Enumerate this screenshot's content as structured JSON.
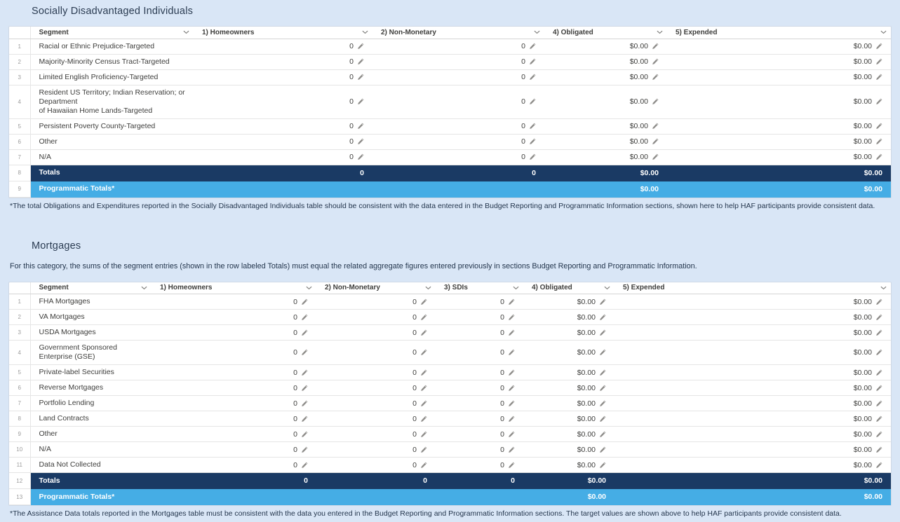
{
  "colors": {
    "page_background": "#d9e6f6",
    "totals_row": "#1a3a64",
    "programmatic_row": "#45ade5",
    "body_text": "#3e3e3c",
    "heading_text": "#2b3c52"
  },
  "icons": {
    "sort": "chevron-down-icon",
    "edit": "pencil-icon"
  },
  "sections": [
    {
      "title": "Socially Disadvantaged Individuals",
      "intro": "",
      "footnote": "*The total Obligations and Expenditures reported in the Socially Disadvantaged Individuals table should be consistent with the data entered in the Budget Reporting and Programmatic Information sections, shown here to help HAF participants provide consistent data.",
      "table": {
        "columns": [
          {
            "label": "Segment"
          },
          {
            "label": "1) Homeowners"
          },
          {
            "label": "2) Non-Monetary"
          },
          {
            "label": "4) Obligated"
          },
          {
            "label": "5) Expended"
          }
        ],
        "rows": [
          {
            "num": "1",
            "segment": "Racial or Ethnic Prejudice-Targeted",
            "values": [
              "0",
              "0",
              "$0.00",
              "$0.00"
            ],
            "editable": true,
            "style": "normal"
          },
          {
            "num": "2",
            "segment": "Majority-Minority Census Tract-Targeted",
            "values": [
              "0",
              "0",
              "$0.00",
              "$0.00"
            ],
            "editable": true,
            "style": "normal"
          },
          {
            "num": "3",
            "segment": "Limited English Proficiency-Targeted",
            "values": [
              "0",
              "0",
              "$0.00",
              "$0.00"
            ],
            "editable": true,
            "style": "normal"
          },
          {
            "num": "4",
            "segment": "Resident US Territory; Indian Reservation; or Department\nof Hawaiian Home Lands-Targeted",
            "values": [
              "0",
              "0",
              "$0.00",
              "$0.00"
            ],
            "editable": true,
            "style": "normal"
          },
          {
            "num": "5",
            "segment": "Persistent Poverty County-Targeted",
            "values": [
              "0",
              "0",
              "$0.00",
              "$0.00"
            ],
            "editable": true,
            "style": "normal"
          },
          {
            "num": "6",
            "segment": "Other",
            "values": [
              "0",
              "0",
              "$0.00",
              "$0.00"
            ],
            "editable": true,
            "style": "normal"
          },
          {
            "num": "7",
            "segment": "N/A",
            "values": [
              "0",
              "0",
              "$0.00",
              "$0.00"
            ],
            "editable": true,
            "style": "normal"
          },
          {
            "num": "8",
            "segment": "Totals",
            "values": [
              "0",
              "0",
              "$0.00",
              "$0.00"
            ],
            "editable": false,
            "style": "totals"
          },
          {
            "num": "9",
            "segment": "Programmatic Totals*",
            "values": [
              "",
              "",
              "$0.00",
              "$0.00"
            ],
            "editable": false,
            "style": "programmatic"
          }
        ]
      }
    },
    {
      "title": "Mortgages",
      "intro": "For this category, the sums of the segment entries (shown in the row labeled Totals) must equal the related aggregate figures entered previously in sections Budget Reporting and Programmatic Information.",
      "footnote": "*The Assistance Data totals reported in the Mortgages table must be consistent with the data you entered in the Budget Reporting and Programmatic Information sections. The target values are shown above to help HAF participants provide consistent data.",
      "table": {
        "columns": [
          {
            "label": "Segment"
          },
          {
            "label": "1) Homeowners"
          },
          {
            "label": "2) Non-Monetary"
          },
          {
            "label": "3) SDIs"
          },
          {
            "label": "4) Obligated"
          },
          {
            "label": "5) Expended"
          }
        ],
        "rows": [
          {
            "num": "1",
            "segment": "FHA Mortgages",
            "values": [
              "0",
              "0",
              "0",
              "$0.00",
              "$0.00"
            ],
            "editable": true,
            "style": "normal"
          },
          {
            "num": "2",
            "segment": "VA Mortgages",
            "values": [
              "0",
              "0",
              "0",
              "$0.00",
              "$0.00"
            ],
            "editable": true,
            "style": "normal"
          },
          {
            "num": "3",
            "segment": "USDA Mortgages",
            "values": [
              "0",
              "0",
              "0",
              "$0.00",
              "$0.00"
            ],
            "editable": true,
            "style": "normal"
          },
          {
            "num": "4",
            "segment": "Government Sponsored Enterprise (GSE)",
            "values": [
              "0",
              "0",
              "0",
              "$0.00",
              "$0.00"
            ],
            "editable": true,
            "style": "normal"
          },
          {
            "num": "5",
            "segment": "Private-label Securities",
            "values": [
              "0",
              "0",
              "0",
              "$0.00",
              "$0.00"
            ],
            "editable": true,
            "style": "normal"
          },
          {
            "num": "6",
            "segment": "Reverse Mortgages",
            "values": [
              "0",
              "0",
              "0",
              "$0.00",
              "$0.00"
            ],
            "editable": true,
            "style": "normal"
          },
          {
            "num": "7",
            "segment": "Portfolio Lending",
            "values": [
              "0",
              "0",
              "0",
              "$0.00",
              "$0.00"
            ],
            "editable": true,
            "style": "normal"
          },
          {
            "num": "8",
            "segment": "Land Contracts",
            "values": [
              "0",
              "0",
              "0",
              "$0.00",
              "$0.00"
            ],
            "editable": true,
            "style": "normal"
          },
          {
            "num": "9",
            "segment": "Other",
            "values": [
              "0",
              "0",
              "0",
              "$0.00",
              "$0.00"
            ],
            "editable": true,
            "style": "normal"
          },
          {
            "num": "10",
            "segment": "N/A",
            "values": [
              "0",
              "0",
              "0",
              "$0.00",
              "$0.00"
            ],
            "editable": true,
            "style": "normal"
          },
          {
            "num": "11",
            "segment": "Data Not Collected",
            "values": [
              "0",
              "0",
              "0",
              "$0.00",
              "$0.00"
            ],
            "editable": true,
            "style": "normal"
          },
          {
            "num": "12",
            "segment": "Totals",
            "values": [
              "0",
              "0",
              "0",
              "$0.00",
              "$0.00"
            ],
            "editable": false,
            "style": "totals"
          },
          {
            "num": "13",
            "segment": "Programmatic Totals*",
            "values": [
              "",
              "",
              "",
              "$0.00",
              "$0.00"
            ],
            "editable": false,
            "style": "programmatic"
          }
        ]
      }
    }
  ]
}
